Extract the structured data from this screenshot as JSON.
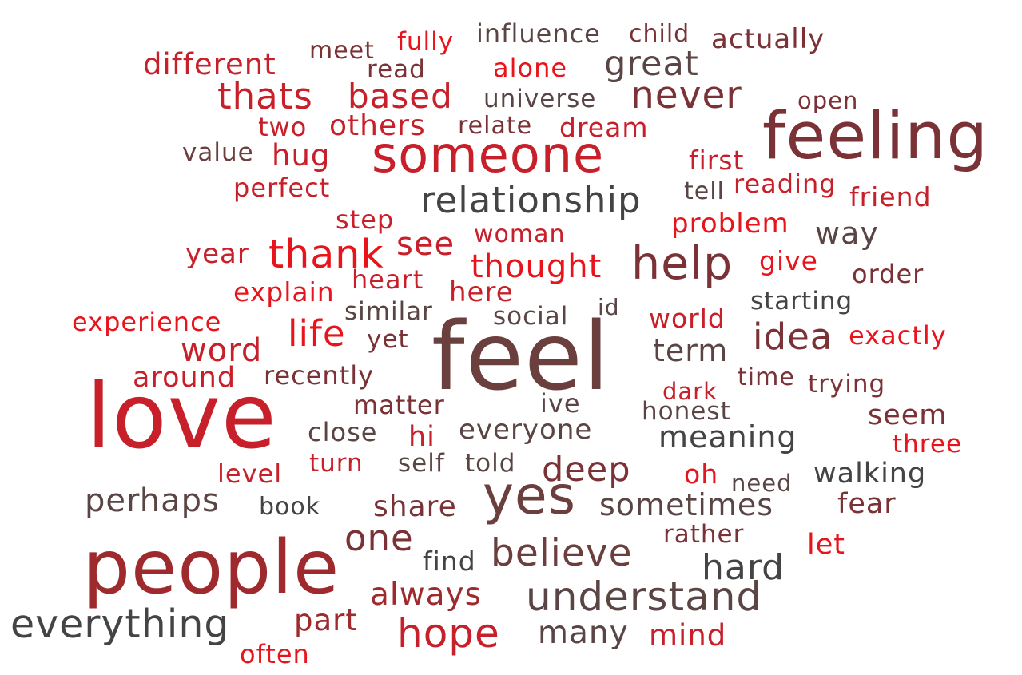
{
  "palette": {
    "bright_red": "#e8141c",
    "red": "#c8202a",
    "dark_red": "#9e2a2e",
    "maroon": "#7a3236",
    "brown": "#6b3f3d",
    "dark_brown": "#5a4544",
    "charcoal": "#444444"
  },
  "words": [
    {
      "text": "influence",
      "color": "#5a4544"
    },
    {
      "text": "child",
      "color": "#7a3236"
    },
    {
      "text": "fully",
      "color": "#e8141c"
    },
    {
      "text": "actually",
      "color": "#7a3236"
    },
    {
      "text": "meet",
      "color": "#7a3236"
    },
    {
      "text": "different",
      "color": "#c8202a"
    },
    {
      "text": "read",
      "color": "#7a3236"
    },
    {
      "text": "alone",
      "color": "#e8141c"
    },
    {
      "text": "great",
      "color": "#5a4544"
    },
    {
      "text": "thats",
      "color": "#c8202a"
    },
    {
      "text": "based",
      "color": "#c8202a"
    },
    {
      "text": "universe",
      "color": "#5a4544"
    },
    {
      "text": "never",
      "color": "#7a3236"
    },
    {
      "text": "open",
      "color": "#7a3236"
    },
    {
      "text": "two",
      "color": "#c8202a"
    },
    {
      "text": "others",
      "color": "#c8202a"
    },
    {
      "text": "relate",
      "color": "#7a3236"
    },
    {
      "text": "dream",
      "color": "#c8202a"
    },
    {
      "text": "feeling",
      "color": "#7a3236"
    },
    {
      "text": "someone",
      "color": "#c8202a"
    },
    {
      "text": "value",
      "color": "#6b3f3d"
    },
    {
      "text": "hug",
      "color": "#c8202a"
    },
    {
      "text": "first",
      "color": "#c8202a"
    },
    {
      "text": "perfect",
      "color": "#c8202a"
    },
    {
      "text": "relationship",
      "color": "#444444"
    },
    {
      "text": "tell",
      "color": "#5a4544"
    },
    {
      "text": "reading",
      "color": "#c8202a"
    },
    {
      "text": "friend",
      "color": "#c8202a"
    },
    {
      "text": "step",
      "color": "#c8202a"
    },
    {
      "text": "problem",
      "color": "#e8141c"
    },
    {
      "text": "way",
      "color": "#5a4544"
    },
    {
      "text": "woman",
      "color": "#c8202a"
    },
    {
      "text": "see",
      "color": "#c8202a"
    },
    {
      "text": "year",
      "color": "#c8202a"
    },
    {
      "text": "thank",
      "color": "#e8141c"
    },
    {
      "text": "thought",
      "color": "#e8141c"
    },
    {
      "text": "help",
      "color": "#7a3236"
    },
    {
      "text": "give",
      "color": "#e8141c"
    },
    {
      "text": "order",
      "color": "#7a3236"
    },
    {
      "text": "explain",
      "color": "#e8141c"
    },
    {
      "text": "heart",
      "color": "#c8202a"
    },
    {
      "text": "here",
      "color": "#c8202a"
    },
    {
      "text": "similar",
      "color": "#5a4544"
    },
    {
      "text": "social",
      "color": "#5a4544"
    },
    {
      "text": "id",
      "color": "#5a4544"
    },
    {
      "text": "starting",
      "color": "#444444"
    },
    {
      "text": "experience",
      "color": "#e8141c"
    },
    {
      "text": "life",
      "color": "#e8141c"
    },
    {
      "text": "world",
      "color": "#c8202a"
    },
    {
      "text": "feel",
      "color": "#6b3f3d"
    },
    {
      "text": "idea",
      "color": "#7a3236"
    },
    {
      "text": "exactly",
      "color": "#e8141c"
    },
    {
      "text": "word",
      "color": "#c8202a"
    },
    {
      "text": "yet",
      "color": "#7a3236"
    },
    {
      "text": "term",
      "color": "#5a4544"
    },
    {
      "text": "around",
      "color": "#c8202a"
    },
    {
      "text": "recently",
      "color": "#7a3236"
    },
    {
      "text": "time",
      "color": "#7a3236"
    },
    {
      "text": "trying",
      "color": "#7a3236"
    },
    {
      "text": "dark",
      "color": "#c8202a"
    },
    {
      "text": "love",
      "color": "#c8202a"
    },
    {
      "text": "matter",
      "color": "#7a3236"
    },
    {
      "text": "ive",
      "color": "#5a4544"
    },
    {
      "text": "honest",
      "color": "#5a4544"
    },
    {
      "text": "seem",
      "color": "#7a3236"
    },
    {
      "text": "close",
      "color": "#5a4544"
    },
    {
      "text": "hi",
      "color": "#c8202a"
    },
    {
      "text": "everyone",
      "color": "#5a4544"
    },
    {
      "text": "meaning",
      "color": "#444444"
    },
    {
      "text": "three",
      "color": "#e8141c"
    },
    {
      "text": "level",
      "color": "#c8202a"
    },
    {
      "text": "turn",
      "color": "#c8202a"
    },
    {
      "text": "self",
      "color": "#5a4544"
    },
    {
      "text": "told",
      "color": "#5a4544"
    },
    {
      "text": "deep",
      "color": "#7a3236"
    },
    {
      "text": "oh",
      "color": "#e8141c"
    },
    {
      "text": "need",
      "color": "#5a4544"
    },
    {
      "text": "walking",
      "color": "#444444"
    },
    {
      "text": "perhaps",
      "color": "#5a4544"
    },
    {
      "text": "book",
      "color": "#444444"
    },
    {
      "text": "share",
      "color": "#7a3236"
    },
    {
      "text": "yes",
      "color": "#6b3f3d"
    },
    {
      "text": "sometimes",
      "color": "#5a4544"
    },
    {
      "text": "fear",
      "color": "#7a3236"
    },
    {
      "text": "one",
      "color": "#7a3236"
    },
    {
      "text": "rather",
      "color": "#7a3236"
    },
    {
      "text": "let",
      "color": "#e8141c"
    },
    {
      "text": "people",
      "color": "#9e2a2e"
    },
    {
      "text": "believe",
      "color": "#6b3f3d"
    },
    {
      "text": "find",
      "color": "#444444"
    },
    {
      "text": "hard",
      "color": "#444444"
    },
    {
      "text": "always",
      "color": "#9e2a2e"
    },
    {
      "text": "understand",
      "color": "#5a4544"
    },
    {
      "text": "everything",
      "color": "#444444"
    },
    {
      "text": "part",
      "color": "#9e2a2e"
    },
    {
      "text": "hope",
      "color": "#c8202a"
    },
    {
      "text": "many",
      "color": "#5a4544"
    },
    {
      "text": "mind",
      "color": "#c8202a"
    },
    {
      "text": "often",
      "color": "#e8141c"
    }
  ]
}
